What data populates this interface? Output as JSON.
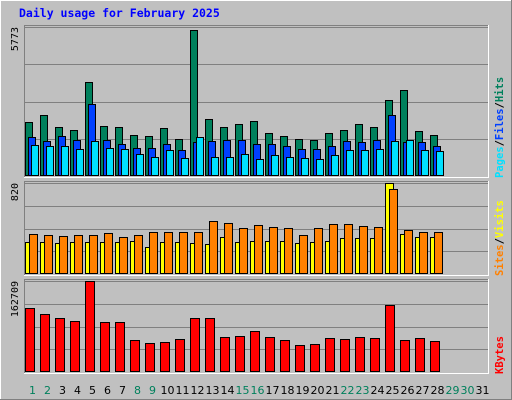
{
  "chart_data": {
    "type": "bar",
    "title": "Daily usage for February 2025",
    "colors": {
      "hits": "#00805c",
      "files": "#0040ff",
      "pages": "#00e0ff",
      "visits": "#ffff00",
      "sites": "#ff8000",
      "kbytes": "#ff0000",
      "weekend_label": "#00805c",
      "weekday_label": "#00805c",
      "future_label": "#00805c",
      "normal_label": "#000000"
    },
    "categories": [
      "1",
      "2",
      "3",
      "4",
      "5",
      "6",
      "7",
      "8",
      "9",
      "10",
      "11",
      "12",
      "13",
      "14",
      "15",
      "16",
      "17",
      "18",
      "19",
      "20",
      "21",
      "22",
      "23",
      "24",
      "25",
      "26",
      "27",
      "28",
      "29",
      "30",
      "31"
    ],
    "weekend_days": [
      "1",
      "2",
      "8",
      "9",
      "15",
      "16",
      "22",
      "23",
      "29",
      "30"
    ],
    "panels": [
      {
        "id": "hits-files-pages",
        "ymax": 5773,
        "ymax_label": "5773",
        "legend": [
          {
            "text": "Pages",
            "color": "#00e0ff"
          },
          {
            "text": "Files",
            "color": "#0040ff"
          },
          {
            "text": "Hits",
            "color": "#00805c"
          }
        ],
        "series": [
          {
            "name": "Hits",
            "color": "#00805c",
            "values": [
              2100,
              2350,
              1900,
              1800,
              3650,
              1950,
              1900,
              1600,
              1550,
              1850,
              1450,
              5660,
              2200,
              1900,
              2000,
              2150,
              1650,
              1550,
              1450,
              1400,
              1650,
              1800,
              2000,
              1900,
              2950,
              3350,
              1750,
              1600,
              0,
              0,
              0
            ]
          },
          {
            "name": "Files",
            "color": "#0040ff",
            "values": [
              1500,
              1350,
              1550,
              1400,
              2800,
              1400,
              1250,
              1100,
              1100,
              1250,
              1000,
              1300,
              1350,
              1400,
              1400,
              1250,
              1250,
              1150,
              1050,
              1050,
              1150,
              1350,
              1300,
              1400,
              2350,
              1300,
              1300,
              1150,
              0,
              0,
              0
            ]
          },
          {
            "name": "Pages",
            "color": "#00e0ff",
            "values": [
              1200,
              1150,
              1150,
              1050,
              1350,
              1100,
              1050,
              850,
              750,
              1000,
              700,
              1500,
              750,
              750,
              850,
              650,
              800,
              750,
              700,
              650,
              800,
              1000,
              1000,
              1050,
              1350,
              1400,
              1000,
              950,
              0,
              0,
              0
            ]
          }
        ]
      },
      {
        "id": "visits-sites",
        "ymax": 820,
        "ymax_label": "820",
        "legend": [
          {
            "text": "Sites",
            "color": "#ff8000"
          },
          {
            "text": "Visits",
            "color": "#ffff00"
          }
        ],
        "series": [
          {
            "name": "Visits",
            "color": "#ffff00",
            "values": [
              290,
              290,
              280,
              290,
              290,
              290,
              290,
              300,
              240,
              290,
              290,
              280,
              270,
              330,
              290,
              300,
              300,
              300,
              280,
              290,
              300,
              320,
              320,
              320,
              820,
              360,
              330,
              330,
              0,
              0,
              0
            ]
          },
          {
            "name": "Sites",
            "color": "#ff8000",
            "values": [
              360,
              350,
              340,
              350,
              350,
              370,
              330,
              350,
              380,
              380,
              380,
              380,
              480,
              460,
              410,
              440,
              420,
              410,
              350,
              410,
              450,
              450,
              430,
              420,
              770,
              400,
              380,
              380,
              0,
              0,
              0
            ]
          }
        ]
      },
      {
        "id": "kbytes",
        "ymax": 162709,
        "ymax_label": "162709",
        "legend": [
          {
            "text": "KBytes",
            "color": "#ff0000"
          }
        ],
        "series": [
          {
            "name": "KBytes",
            "color": "#ff0000",
            "values": [
              114000,
              103000,
              96000,
              91000,
              162709,
              90000,
              90000,
              57000,
              52000,
              54000,
              59000,
              96000,
              96000,
              63000,
              65000,
              74000,
              62000,
              58000,
              48000,
              50000,
              60000,
              59000,
              62000,
              60000,
              119000,
              57000,
              60000,
              56000,
              0,
              0,
              0
            ]
          }
        ]
      }
    ]
  }
}
